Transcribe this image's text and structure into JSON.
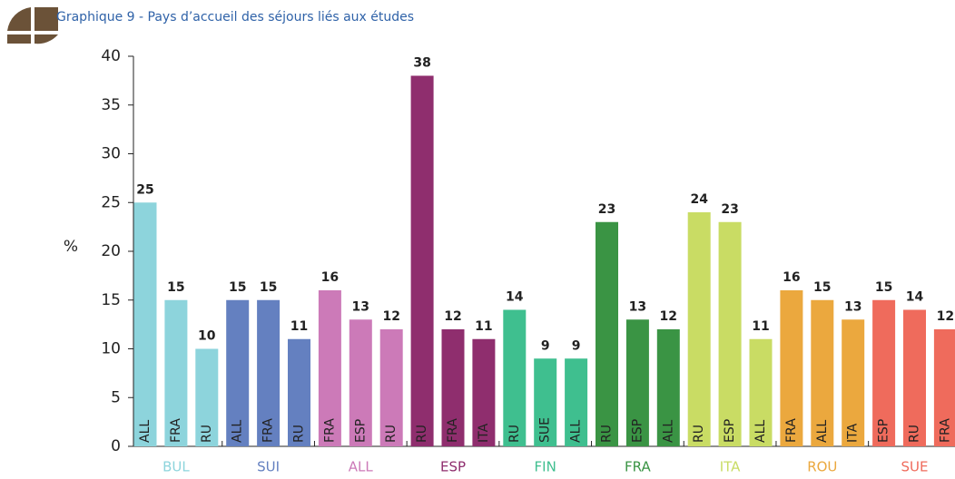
{
  "chart_data": {
    "type": "grouped_bar",
    "title": "Graphique 9 - Pays d’accueil des séjours liés aux études",
    "y_label": "%",
    "ylim": [
      0,
      40
    ],
    "yticks": [
      0,
      5,
      10,
      15,
      20,
      25,
      30,
      35,
      40
    ],
    "groups": [
      {
        "name": "BUL",
        "color": "#8dd4dc",
        "categories": [
          "ALL",
          "FRA",
          "RU"
        ],
        "values": [
          25,
          15,
          10
        ]
      },
      {
        "name": "SUI",
        "color": "#6480c0",
        "categories": [
          "ALL",
          "FRA",
          "RU"
        ],
        "values": [
          15,
          15,
          11
        ]
      },
      {
        "name": "ALL",
        "color": "#cc7ab8",
        "categories": [
          "FRA",
          "ESP",
          "RU"
        ],
        "values": [
          16,
          13,
          12
        ]
      },
      {
        "name": "ESP",
        "color": "#8f2e6e",
        "categories": [
          "RU",
          "FRA",
          "ITA"
        ],
        "values": [
          38,
          12,
          11
        ]
      },
      {
        "name": "FIN",
        "color": "#3fbf8f",
        "categories": [
          "RU",
          "SUE",
          "ALL"
        ],
        "values": [
          14,
          9,
          9
        ]
      },
      {
        "name": "FRA",
        "color": "#3a9444",
        "categories": [
          "RU",
          "ESP",
          "ALL"
        ],
        "values": [
          23,
          13,
          12
        ]
      },
      {
        "name": "ITA",
        "color": "#c9dc64",
        "categories": [
          "RU",
          "ESP",
          "ALL"
        ],
        "values": [
          24,
          23,
          11
        ]
      },
      {
        "name": "ROU",
        "color": "#eba83e",
        "categories": [
          "FRA",
          "ALL",
          "ITA"
        ],
        "values": [
          16,
          15,
          13
        ]
      },
      {
        "name": "SUE",
        "color": "#ef6b5c",
        "categories": [
          "ESP",
          "RU",
          "FRA"
        ],
        "values": [
          15,
          14,
          12
        ]
      }
    ]
  }
}
